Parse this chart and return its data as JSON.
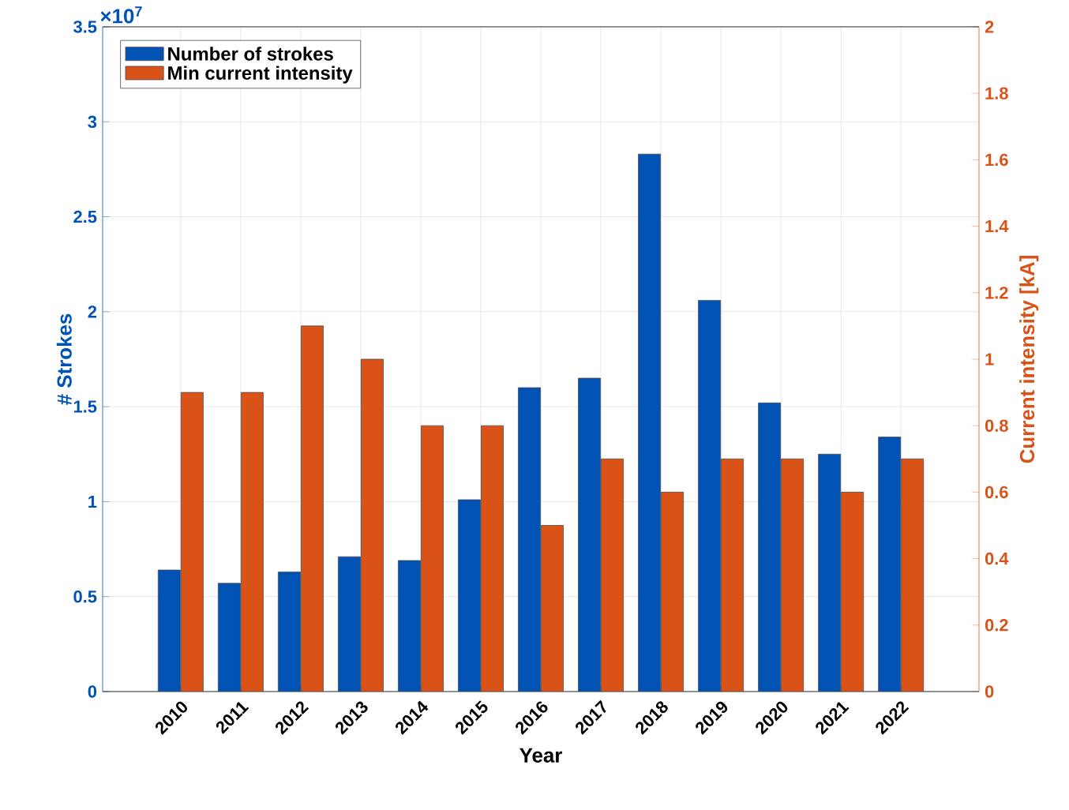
{
  "chart_data": {
    "type": "bar",
    "xlabel": "Year",
    "ylabel": "# Strokes",
    "y2label": "Current intensity [kA]",
    "categories": [
      "2010",
      "2011",
      "2012",
      "2013",
      "2014",
      "2015",
      "2016",
      "2017",
      "2018",
      "2019",
      "2020",
      "2021",
      "2022"
    ],
    "series": [
      {
        "name": "Number of strokes",
        "color": "#0052b4",
        "values": [
          0.64,
          0.57,
          0.63,
          0.71,
          0.69,
          1.01,
          1.6,
          1.65,
          2.83,
          2.06,
          1.52,
          1.25,
          1.34
        ]
      },
      {
        "name": "Min current intensity",
        "color": "#d95319",
        "axis": "y2",
        "values": [
          0.9,
          0.9,
          1.1,
          1.0,
          0.8,
          0.8,
          0.5,
          0.7,
          0.6,
          0.7,
          0.7,
          0.6,
          0.7
        ]
      }
    ],
    "ylim": [
      0,
      3.5
    ],
    "yticks": [
      0,
      0.5,
      1,
      1.5,
      2,
      2.5,
      3,
      3.5
    ],
    "y2lim": [
      0,
      2
    ],
    "y2ticks": [
      0,
      0.2,
      0.4,
      0.6,
      0.8,
      1,
      1.2,
      1.4,
      1.6,
      1.8,
      2
    ],
    "annotations": [
      "×10$^{7}$"
    ],
    "grid": true,
    "legend": "top left"
  }
}
